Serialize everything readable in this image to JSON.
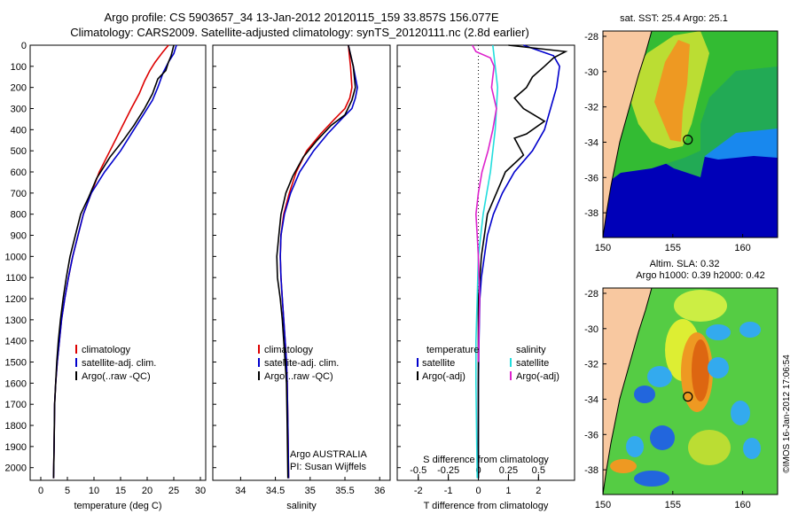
{
  "header": {
    "line1": "Argo profile: CS 5903657_34 13-Jan-2012 20120115_159 33.857S 156.077E",
    "line2": "Climatology: CARS2009. Satellite-adjusted climatology: synTS_20120111.nc (2.8d earlier)"
  },
  "colors": {
    "clim": "#dd0000",
    "sat": "#0000cc",
    "argo": "#000000",
    "sat_sal": "#22dddd",
    "argo_sal": "#dd22cc",
    "land": "#f8c8a0"
  },
  "chart_data": [
    {
      "type": "line",
      "name": "temperature",
      "xlabel": "temperature (deg C)",
      "xlim": [
        -2,
        31
      ],
      "ylim": [
        2060,
        0
      ],
      "xticks": [
        0,
        5,
        10,
        15,
        20,
        25,
        30
      ],
      "yticks": [
        0,
        100,
        200,
        300,
        400,
        500,
        600,
        700,
        800,
        900,
        1000,
        1100,
        1200,
        1300,
        1400,
        1500,
        1600,
        1700,
        1800,
        1900,
        2000
      ],
      "legend": [
        "climatology",
        "satellite-adj. clim.",
        "Argo(..raw -QC)"
      ],
      "series": [
        {
          "name": "climatology",
          "color_key": "clim",
          "x": [
            24,
            23,
            21.5,
            20.5,
            19.5,
            18.5,
            17,
            15,
            13,
            11,
            9.5,
            8,
            7,
            6,
            5.2,
            4.5,
            3.9,
            3.5,
            3.1,
            2.8,
            2.6,
            2.5,
            2.4
          ],
          "y": [
            0,
            30,
            80,
            120,
            170,
            230,
            300,
            400,
            500,
            600,
            700,
            800,
            900,
            1000,
            1100,
            1200,
            1300,
            1400,
            1500,
            1600,
            1700,
            1900,
            2050
          ]
        },
        {
          "name": "satellite-adj. clim.",
          "color_key": "sat",
          "x": [
            25.5,
            25,
            24,
            23,
            22,
            21,
            19.5,
            17.5,
            15,
            12,
            9.5,
            8,
            7,
            6,
            5.2,
            4.5,
            3.9,
            3.5,
            3.1,
            2.8,
            2.6,
            2.5,
            2.4
          ],
          "y": [
            0,
            40,
            80,
            130,
            200,
            260,
            320,
            400,
            500,
            600,
            700,
            800,
            900,
            1000,
            1100,
            1200,
            1300,
            1400,
            1500,
            1600,
            1700,
            1900,
            2050
          ]
        },
        {
          "name": "Argo(..raw -QC)",
          "color_key": "argo",
          "x": [
            25,
            24.8,
            24.5,
            24,
            23.5,
            22,
            21,
            19.5,
            17.5,
            15.5,
            13,
            10.5,
            9,
            7.5,
            6.5,
            5.5,
            4.8,
            4.2,
            3.7,
            3.3,
            3,
            2.8,
            2.6,
            2.5,
            2.4
          ],
          "y": [
            0,
            20,
            50,
            80,
            120,
            160,
            230,
            300,
            380,
            450,
            530,
            630,
            720,
            800,
            900,
            1000,
            1100,
            1200,
            1300,
            1400,
            1500,
            1600,
            1700,
            1900,
            2050
          ]
        }
      ],
      "note": ""
    },
    {
      "type": "line",
      "name": "salinity",
      "xlabel": "salinity",
      "xlim": [
        33.6,
        36.15
      ],
      "ylim": [
        2060,
        0
      ],
      "xticks": [
        34,
        34.5,
        35,
        35.5,
        36
      ],
      "legend": [
        "climatology",
        "satellite-adj. clim.",
        "Argo(..raw -QC)"
      ],
      "series": [
        {
          "name": "climatology",
          "color_key": "clim",
          "x": [
            35.55,
            35.58,
            35.6,
            35.57,
            35.5,
            35.35,
            35.15,
            34.95,
            34.8,
            34.7,
            34.62,
            34.58,
            34.57,
            34.58,
            34.6,
            34.62,
            34.64,
            34.66,
            34.67,
            34.68,
            34.69
          ],
          "y": [
            0,
            100,
            200,
            250,
            300,
            350,
            420,
            500,
            600,
            700,
            800,
            900,
            1000,
            1100,
            1200,
            1300,
            1400,
            1500,
            1600,
            1800,
            2050
          ]
        },
        {
          "name": "satellite-adj. clim.",
          "color_key": "sat",
          "x": [
            35.55,
            35.62,
            35.68,
            35.65,
            35.6,
            35.45,
            35.25,
            35.05,
            34.85,
            34.72,
            34.63,
            34.58,
            34.57,
            34.58,
            34.6,
            34.62,
            34.64,
            34.66,
            34.67,
            34.68,
            34.69
          ],
          "y": [
            0,
            100,
            200,
            250,
            300,
            350,
            420,
            500,
            600,
            700,
            800,
            900,
            1000,
            1100,
            1200,
            1300,
            1400,
            1500,
            1600,
            1800,
            2050
          ]
        },
        {
          "name": "Argo(..raw -QC)",
          "color_key": "argo",
          "x": [
            35.55,
            35.62,
            35.65,
            35.6,
            35.5,
            35.3,
            35.1,
            34.9,
            34.75,
            34.65,
            34.58,
            34.55,
            34.52,
            34.53,
            34.57,
            34.6,
            34.62,
            34.64,
            34.66,
            34.67,
            34.68
          ],
          "y": [
            0,
            100,
            200,
            260,
            330,
            380,
            450,
            530,
            620,
            700,
            800,
            900,
            1000,
            1100,
            1200,
            1300,
            1400,
            1500,
            1600,
            1800,
            2050
          ]
        }
      ],
      "note": "Argo AUSTRALIA",
      "note2": "PI: Susan Wijffels"
    },
    {
      "type": "line",
      "name": "difference",
      "xlabel": "T difference from climatology",
      "xlabel_top": "S difference from climatology",
      "xlim": [
        -2.7,
        3.2
      ],
      "ylim": [
        2060,
        0
      ],
      "xticks": [
        -2,
        -1,
        0,
        1,
        2
      ],
      "xticks_top": [
        -0.5,
        -0.25,
        0,
        0.25,
        0.5
      ],
      "xticks_top_labels": [
        "-0.5",
        "-0.25",
        "0",
        "0.25",
        "0.5"
      ],
      "legend_left": [
        "temperature",
        "satellite",
        "Argo(-adj)"
      ],
      "legend_right": [
        "salinity",
        "satellite",
        "Argo(-adj)"
      ],
      "series": [
        {
          "name": "T satellite",
          "color_key": "sat",
          "x": [
            1.5,
            2.5,
            2.7,
            2.6,
            2.4,
            2.2,
            1.8,
            1.2,
            0.8,
            0.5,
            0.3,
            0.2,
            0.1,
            0.05,
            0.02,
            0,
            0
          ],
          "y": [
            0,
            50,
            100,
            200,
            300,
            400,
            500,
            600,
            700,
            800,
            900,
            1000,
            1100,
            1200,
            1400,
            1600,
            2050
          ]
        },
        {
          "name": "T Argo(-adj)",
          "color_key": "argo",
          "x": [
            1,
            2.9,
            2.5,
            2.2,
            1.8,
            1.6,
            1.2,
            1.5,
            2.2,
            1.6,
            1.2,
            1.5,
            0.9,
            0.6,
            0.3,
            0.2,
            0.1,
            0,
            0,
            0
          ],
          "y": [
            0,
            30,
            60,
            100,
            150,
            200,
            250,
            300,
            360,
            420,
            440,
            520,
            600,
            700,
            800,
            900,
            1000,
            1200,
            1600,
            2050
          ]
        },
        {
          "name": "S satellite",
          "color_key": "sat_sal",
          "x": [
            0.12,
            0.14,
            0.16,
            0.15,
            0.14,
            0.12,
            0.1,
            0.07,
            0.04,
            0.02,
            0,
            -0.01,
            -0.02,
            -0.02,
            -0.01
          ],
          "y": [
            0,
            100,
            200,
            300,
            400,
            500,
            600,
            700,
            800,
            900,
            1000,
            1200,
            1400,
            1600,
            2050
          ]
        },
        {
          "name": "S Argo(-adj)",
          "color_key": "argo_sal",
          "x": [
            -0.05,
            -0.02,
            0.1,
            0.13,
            0.11,
            0.15,
            0.12,
            0.08,
            0.03,
            0,
            -0.02,
            -0.01,
            0,
            0.01,
            0
          ],
          "y": [
            0,
            30,
            60,
            100,
            200,
            300,
            400,
            500,
            600,
            700,
            800,
            900,
            1000,
            1200,
            1500
          ]
        }
      ],
      "zero_line": true
    },
    {
      "type": "heatmap",
      "name": "map_sst",
      "title": "sat. SST: 25.4  Argo: 25.1",
      "xlim": [
        150,
        162.5
      ],
      "ylim": [
        -39.4,
        -27.7
      ],
      "xticks": [
        150,
        155,
        160
      ],
      "yticks": [
        -28,
        -30,
        -32,
        -34,
        -36,
        -38
      ],
      "argo_position": {
        "lon": 156.077,
        "lat": -33.857
      }
    },
    {
      "type": "heatmap",
      "name": "map_sla",
      "title": "Altim. SLA: 0.32",
      "title2": "Argo h1000: 0.39  h2000: 0.42",
      "xlim": [
        150,
        162.5
      ],
      "ylim": [
        -39.4,
        -27.7
      ],
      "xticks": [
        150,
        155,
        160
      ],
      "yticks": [
        -28,
        -30,
        -32,
        -34,
        -36,
        -38
      ],
      "argo_position": {
        "lon": 156.077,
        "lat": -33.857
      }
    }
  ],
  "side_note": "©IMOS 16-Jan-2012 17:06:54"
}
